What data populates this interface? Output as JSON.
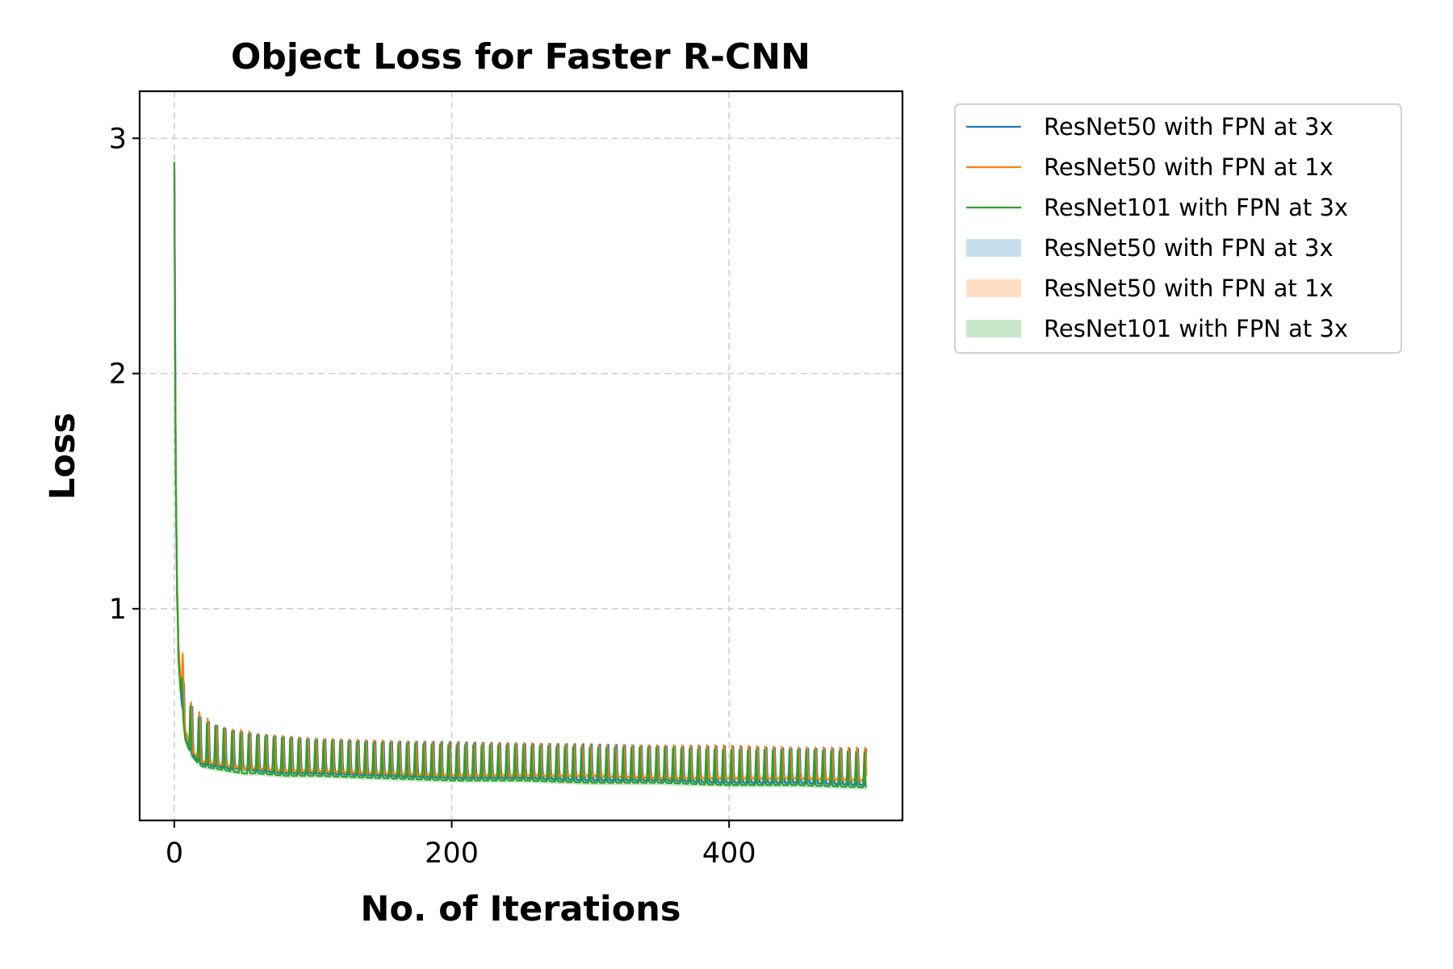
{
  "chart_data": {
    "type": "line",
    "title": "Object Loss for Faster R-CNN",
    "xlabel": "No. of Iterations",
    "ylabel": "Loss",
    "xlim": [
      -25,
      525
    ],
    "ylim": [
      0.1,
      3.2
    ],
    "xticks": [
      0,
      200,
      400
    ],
    "yticks": [
      1,
      2,
      3
    ],
    "grid": true,
    "legend_position": "outside-right-top",
    "series": [
      {
        "name": "ResNet50 with FPN at 3x",
        "kind": "line",
        "color": "#1f77b4",
        "x": [
          0,
          1,
          2,
          3,
          5,
          8,
          12,
          16,
          20,
          30,
          40,
          50,
          60,
          80,
          100,
          150,
          200,
          250,
          300,
          350,
          400,
          450,
          499
        ],
        "lower": [
          2.85,
          1.6,
          1.05,
          0.8,
          0.62,
          0.45,
          0.39,
          0.36,
          0.34,
          0.33,
          0.32,
          0.32,
          0.31,
          0.3,
          0.3,
          0.29,
          0.28,
          0.28,
          0.27,
          0.27,
          0.26,
          0.26,
          0.25
        ],
        "upper": [
          2.85,
          1.6,
          1.05,
          0.86,
          0.75,
          0.66,
          0.6,
          0.56,
          0.54,
          0.51,
          0.49,
          0.48,
          0.47,
          0.46,
          0.45,
          0.44,
          0.44,
          0.43,
          0.43,
          0.42,
          0.42,
          0.41,
          0.41
        ]
      },
      {
        "name": "ResNet50 with FPN at 1x",
        "kind": "line",
        "color": "#ff7f0e",
        "x": [
          0,
          1,
          2,
          3,
          5,
          8,
          12,
          16,
          20,
          30,
          40,
          50,
          60,
          80,
          100,
          150,
          200,
          250,
          300,
          350,
          400,
          450,
          499
        ],
        "lower": [
          2.85,
          1.6,
          1.1,
          0.85,
          0.66,
          0.48,
          0.41,
          0.37,
          0.35,
          0.34,
          0.33,
          0.32,
          0.32,
          0.31,
          0.31,
          0.3,
          0.29,
          0.29,
          0.29,
          0.28,
          0.28,
          0.28,
          0.27
        ],
        "upper": [
          2.85,
          1.6,
          1.1,
          0.9,
          0.92,
          0.68,
          0.63,
          0.6,
          0.58,
          0.53,
          0.51,
          0.51,
          0.49,
          0.48,
          0.47,
          0.46,
          0.45,
          0.45,
          0.44,
          0.44,
          0.44,
          0.43,
          0.43
        ]
      },
      {
        "name": "ResNet101 with FPN at 3x",
        "kind": "line",
        "color": "#2ca02c",
        "x": [
          0,
          1,
          2,
          3,
          5,
          8,
          12,
          16,
          20,
          30,
          40,
          50,
          60,
          80,
          100,
          150,
          200,
          250,
          300,
          350,
          400,
          450,
          499
        ],
        "lower": [
          2.9,
          1.6,
          1.05,
          0.78,
          0.6,
          0.44,
          0.38,
          0.35,
          0.33,
          0.32,
          0.31,
          0.3,
          0.3,
          0.29,
          0.29,
          0.28,
          0.27,
          0.27,
          0.26,
          0.26,
          0.25,
          0.25,
          0.24
        ],
        "upper": [
          2.9,
          1.6,
          1.05,
          0.84,
          0.72,
          0.63,
          0.58,
          0.55,
          0.52,
          0.5,
          0.48,
          0.47,
          0.46,
          0.45,
          0.44,
          0.43,
          0.42,
          0.42,
          0.41,
          0.41,
          0.4,
          0.4,
          0.39
        ]
      },
      {
        "name": "ResNet50 with FPN at 3x",
        "kind": "band",
        "color": "#1f77b4",
        "opacity": 0.25
      },
      {
        "name": "ResNet50 with FPN at 1x",
        "kind": "band",
        "color": "#ff7f0e",
        "opacity": 0.25
      },
      {
        "name": "ResNet101 with FPN at 3x",
        "kind": "band",
        "color": "#2ca02c",
        "opacity": 0.25
      }
    ],
    "oscillation_period": 6
  }
}
